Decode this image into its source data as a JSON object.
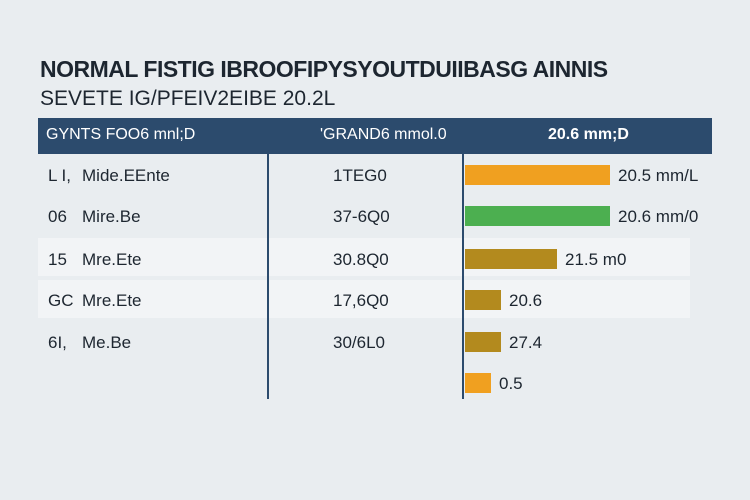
{
  "header": {
    "title_line_1": "NORMAL FISTIG IBROOFIPYSYOUTDUIIBASG AINNIS",
    "title_line_2": "SEVETE IG/PFEIV2EIBE 20.2L"
  },
  "table": {
    "columns": [
      "GYNTS FOO6 mnl;D",
      "'GRAND6 mmol.0",
      "20.6 mm;D"
    ],
    "rows": [
      {
        "code": "L I,",
        "name": "Mide.EEnte",
        "value": "1TEG0",
        "bar_label": "20.5 mm/L"
      },
      {
        "code": "06",
        "name": "Mire.Be",
        "value": "37-6Q0",
        "bar_label": "20.6 mm/0"
      },
      {
        "code": "15",
        "name": "Mre.Ete",
        "value": "30.8Q0",
        "bar_label": "21.5 m0"
      },
      {
        "code": "GC",
        "name": "Mre.Ete",
        "value": "17,6Q0",
        "bar_label": "20.6"
      },
      {
        "code": "6I,",
        "name": "Me.Be",
        "value": "30/6L0",
        "bar_label": "27.4"
      },
      {
        "bar_label": "0.5"
      }
    ]
  }
}
